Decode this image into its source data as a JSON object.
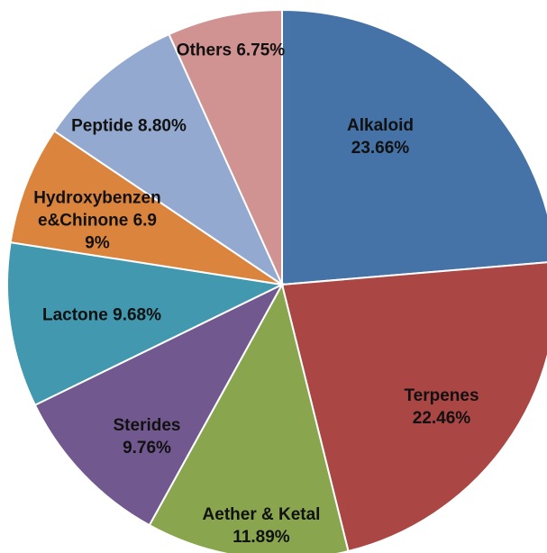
{
  "chart_data": {
    "type": "pie",
    "categories": [
      "Alkaloid",
      "Terpenes",
      "Aether & Ketal",
      "Sterides",
      "Lactone",
      "Hydroxybenzene&Chinone",
      "Peptide",
      "Others"
    ],
    "values": [
      23.66,
      22.46,
      11.89,
      9.76,
      9.68,
      6.99,
      8.8,
      6.75
    ],
    "value_labels": [
      "23.66%",
      "22.46%",
      "11.89%",
      "9.76%",
      "9.68%",
      "6.99%",
      "8.80%",
      "6.75%"
    ],
    "colors": [
      "#4572a7",
      "#aa4643",
      "#89a54e",
      "#71588f",
      "#4198af",
      "#db843d",
      "#93a9cf",
      "#d19392"
    ]
  }
}
